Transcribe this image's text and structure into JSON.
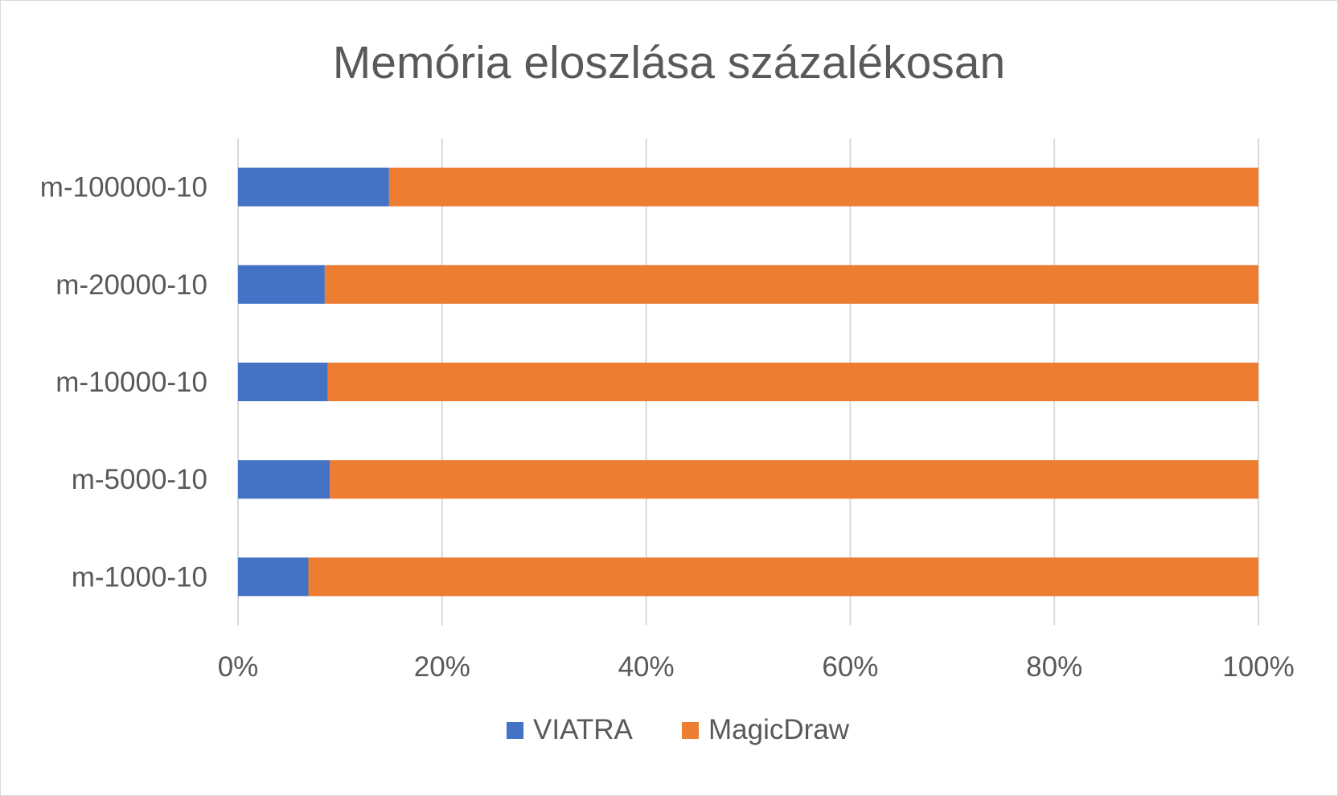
{
  "chart_data": {
    "type": "bar",
    "orientation": "horizontal",
    "stacked": "percent",
    "title": "Memória eloszlása százalékosan",
    "categories": [
      "m-100000-10",
      "m-20000-10",
      "m-10000-10",
      "m-5000-10",
      "m-1000-10"
    ],
    "series": [
      {
        "name": "VIATRA",
        "color": "#4472c4",
        "values": [
          14.8,
          8.5,
          8.8,
          9.0,
          6.9
        ]
      },
      {
        "name": "MagicDraw",
        "color": "#ed7d31",
        "values": [
          85.2,
          91.5,
          91.2,
          91.0,
          93.1
        ]
      }
    ],
    "x_ticks": [
      "0%",
      "20%",
      "40%",
      "60%",
      "80%",
      "100%"
    ],
    "xlim": [
      0,
      100
    ],
    "grid": true,
    "legend": "bottom"
  }
}
